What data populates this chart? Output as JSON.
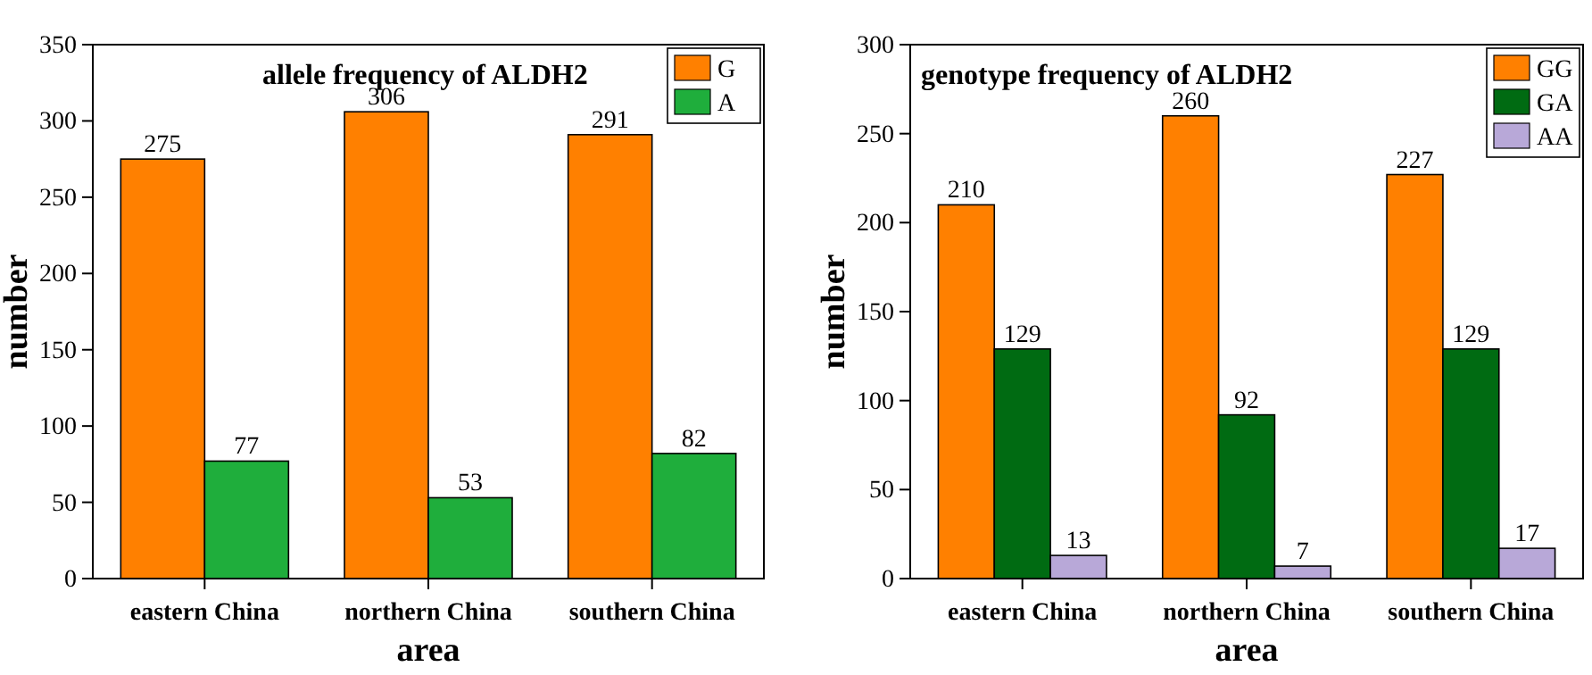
{
  "chart_data": [
    {
      "type": "bar",
      "title": "allele frequency of ALDH2",
      "xlabel": "area",
      "ylabel": "number",
      "categories": [
        "eastern China",
        "northern China",
        "southern China"
      ],
      "series": [
        {
          "name": "G",
          "color": "#ff8000",
          "values": [
            275,
            306,
            291
          ]
        },
        {
          "name": "A",
          "color": "#1fae3c",
          "values": [
            77,
            53,
            82
          ]
        }
      ],
      "ylim": [
        0,
        350
      ],
      "yticks": [
        0,
        50,
        100,
        150,
        200,
        250,
        300,
        350
      ],
      "data_labels": true,
      "legend": "top right",
      "grid": false
    },
    {
      "type": "bar",
      "title": "genotype frequency of ALDH2",
      "xlabel": "area",
      "ylabel": "number",
      "categories": [
        "eastern China",
        "northern China",
        "southern China"
      ],
      "series": [
        {
          "name": "GG",
          "color": "#ff8000",
          "values": [
            210,
            260,
            227
          ]
        },
        {
          "name": "GA",
          "color": "#006b12",
          "values": [
            129,
            92,
            129
          ]
        },
        {
          "name": "AA",
          "color": "#b8a8d8",
          "values": [
            13,
            7,
            17
          ]
        }
      ],
      "ylim": [
        0,
        300
      ],
      "yticks": [
        0,
        50,
        100,
        150,
        200,
        250,
        300
      ],
      "data_labels": true,
      "legend": "top right",
      "grid": false
    }
  ]
}
